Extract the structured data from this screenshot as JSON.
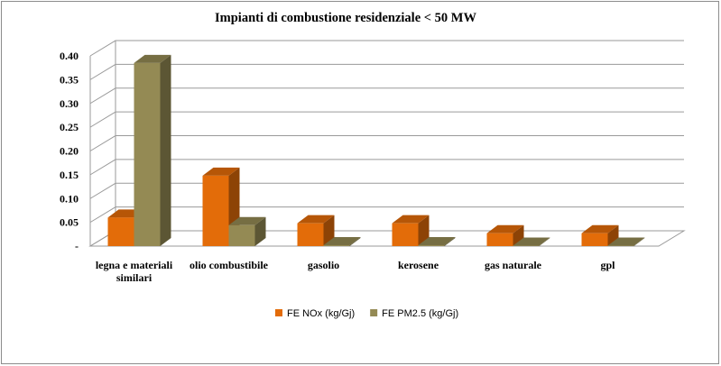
{
  "chart_data": {
    "type": "bar",
    "title": "Impianti di combustione residenziale  < 50 MW",
    "categories": [
      [
        "legna e materiali",
        "similari"
      ],
      [
        "olio combustibile"
      ],
      [
        "gasolio"
      ],
      [
        "kerosene"
      ],
      [
        "gas naturale"
      ],
      [
        "gpl"
      ]
    ],
    "series": [
      {
        "name": "FE NOx (kg/Gj)",
        "color": "#E36C09",
        "values": [
          0.06,
          0.148,
          0.048,
          0.048,
          0.027,
          0.027
        ]
      },
      {
        "name": "FE PM2.5 (kg/Gj)",
        "color": "#948A54",
        "values": [
          0.385,
          0.044,
          0.002,
          0.002,
          0.001,
          0.001
        ]
      }
    ],
    "y_ticks": [
      "-",
      "0.05",
      "0.10",
      "0.15",
      "0.20",
      "0.25",
      "0.30",
      "0.35",
      "0.40"
    ],
    "ylim": [
      0,
      0.4
    ],
    "grid": true,
    "legend_position": "bottom",
    "style": "3d-column"
  }
}
